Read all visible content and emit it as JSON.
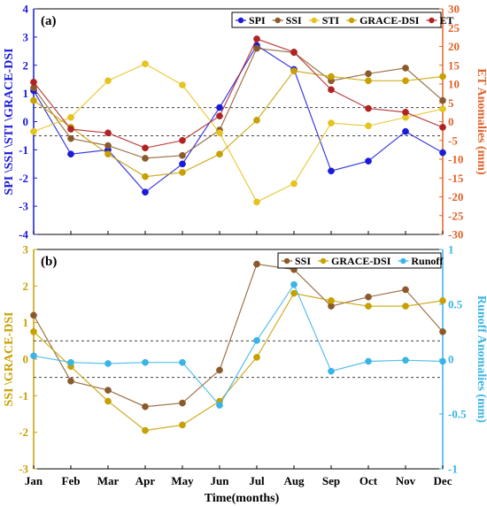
{
  "chart_data": [
    {
      "type": "line",
      "panel_label": "(a)",
      "categories": [
        "Jan",
        "Feb",
        "Mar",
        "Apr",
        "May",
        "Jun",
        "Jul",
        "Aug",
        "Sep",
        "Oct",
        "Nov",
        "Dec"
      ],
      "ylabel": "SPI \\SSI \\STI \\GRACE-DSI",
      "y2label": "ET Anomalies (mm)",
      "ylim": [
        -4,
        4
      ],
      "yticks": [
        -4,
        -3,
        -2,
        -1,
        0,
        1,
        2,
        3,
        4
      ],
      "y2lim": [
        -30,
        30
      ],
      "y2ticks": [
        -30,
        -25,
        -20,
        -15,
        -10,
        -5,
        0,
        5,
        10,
        15,
        20,
        25,
        30
      ],
      "thresholds": [
        0.5,
        -0.5
      ],
      "legend_position": "top-right",
      "series": [
        {
          "name": "SPI",
          "axis": "left",
          "color": "#1a1adb",
          "values": [
            1.1,
            -1.15,
            -1.0,
            -2.5,
            -1.5,
            0.5,
            2.7,
            1.85,
            -1.75,
            -1.4,
            -0.35,
            -1.1
          ]
        },
        {
          "name": "SSI",
          "axis": "left",
          "color": "#8b5a2b",
          "values": [
            1.2,
            -0.6,
            -0.85,
            -1.3,
            -1.2,
            -0.3,
            2.6,
            2.45,
            1.45,
            1.7,
            1.9,
            0.75
          ]
        },
        {
          "name": "STI",
          "axis": "left",
          "color": "#e6c31e",
          "values": [
            -0.35,
            0.15,
            1.45,
            2.05,
            1.3,
            -0.4,
            -2.85,
            -2.2,
            -0.05,
            -0.15,
            0.15,
            0.45
          ]
        },
        {
          "name": "GRACE-DSI",
          "axis": "left",
          "color": "#c8a000",
          "values": [
            0.75,
            -0.2,
            -1.15,
            -1.95,
            -1.8,
            -1.15,
            0.05,
            1.8,
            1.6,
            1.45,
            1.45,
            1.6
          ]
        },
        {
          "name": "ET",
          "axis": "right",
          "color": "#b22222",
          "values": [
            10.5,
            -2.0,
            -3.0,
            -7.0,
            -5.0,
            1.5,
            22.0,
            18.5,
            8.5,
            3.5,
            2.5,
            -1.5
          ]
        }
      ]
    },
    {
      "type": "line",
      "panel_label": "(b)",
      "categories": [
        "Jan",
        "Feb",
        "Mar",
        "Apr",
        "May",
        "Jun",
        "Jul",
        "Aug",
        "Sep",
        "Oct",
        "Nov",
        "Dec"
      ],
      "xlabel": "Time(months)",
      "ylabel": "SSI \\GRACE-DSI",
      "y2label": "Runoff Anomalies (mm)",
      "ylim": [
        -3,
        3
      ],
      "yticks": [
        -3,
        -2,
        -1,
        0,
        1,
        2,
        3
      ],
      "y2lim": [
        -1,
        1
      ],
      "y2ticks": [
        -1,
        -0.5,
        0,
        0.5,
        1
      ],
      "thresholds": [
        0.5,
        -0.5
      ],
      "legend_position": "top-right",
      "series": [
        {
          "name": "SSI",
          "axis": "left",
          "color": "#8b5a2b",
          "values": [
            1.2,
            -0.6,
            -0.85,
            -1.3,
            -1.2,
            -0.3,
            2.6,
            2.45,
            1.45,
            1.7,
            1.9,
            0.75
          ]
        },
        {
          "name": "GRACE-DSI",
          "axis": "left",
          "color": "#c8a000",
          "values": [
            0.75,
            -0.2,
            -1.15,
            -1.95,
            -1.8,
            -1.15,
            0.05,
            1.8,
            1.6,
            1.45,
            1.45,
            1.6
          ]
        },
        {
          "name": "Runoff",
          "axis": "right",
          "color": "#3ab4e6",
          "values": [
            0.03,
            -0.03,
            -0.04,
            -0.03,
            -0.03,
            -0.42,
            0.17,
            0.68,
            -0.11,
            -0.02,
            -0.01,
            -0.02
          ]
        }
      ]
    }
  ],
  "colors": {
    "left_axis_a": "#1a1adb",
    "right_axis_a": "#e0632a",
    "left_axis_b": "#c8a000",
    "right_axis_b": "#3ab4e6",
    "threshold": "#444444"
  }
}
